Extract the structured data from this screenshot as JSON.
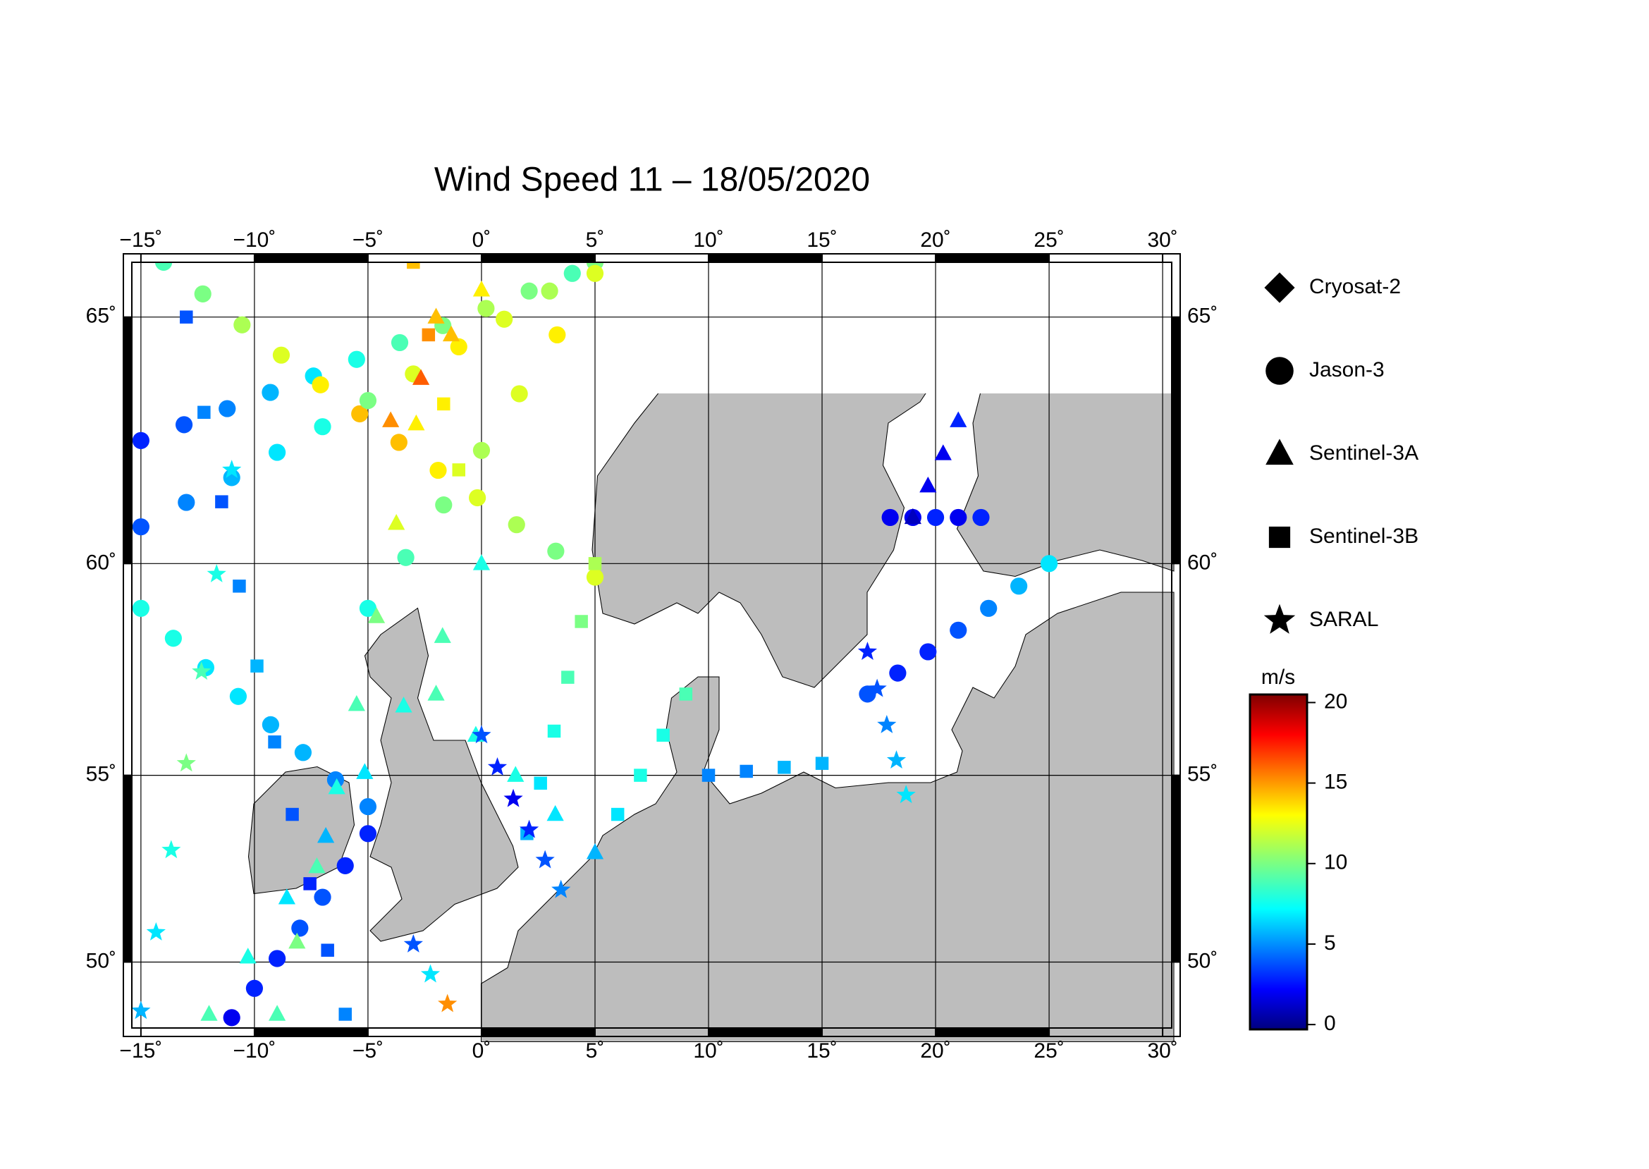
{
  "chart_data": {
    "type": "track-map",
    "title": "Wind Speed 11 – 18/05/2020",
    "projection": "mercator",
    "xlim": [
      -15.4,
      30.4
    ],
    "ylim": [
      48.1,
      66.0
    ],
    "xticks": [
      {
        "value": -15,
        "label": "−15˚"
      },
      {
        "value": -10,
        "label": "−10˚"
      },
      {
        "value": -5,
        "label": "−5˚"
      },
      {
        "value": 0,
        "label": "0˚"
      },
      {
        "value": 5,
        "label": "5˚"
      },
      {
        "value": 10,
        "label": "10˚"
      },
      {
        "value": 15,
        "label": "15˚"
      },
      {
        "value": 20,
        "label": "20˚"
      },
      {
        "value": 25,
        "label": "25˚"
      },
      {
        "value": 30,
        "label": "30˚"
      }
    ],
    "yticks": [
      {
        "value": 50,
        "label": "50˚"
      },
      {
        "value": 55,
        "label": "55˚"
      },
      {
        "value": 60,
        "label": "60˚"
      },
      {
        "value": 65,
        "label": "65˚"
      }
    ],
    "grid": true,
    "colorbar": {
      "label": "m/s",
      "lim": [
        -0.3,
        20.5
      ],
      "ticks": [
        0,
        5,
        10,
        15,
        20
      ],
      "colormap": "jet"
    },
    "series": [
      {
        "name": "Cryosat-2",
        "marker": "diamond",
        "tracks": []
      },
      {
        "name": "Jason-3",
        "marker": "circle",
        "tracks": [
          {
            "start": [
              -15,
              62.6
            ],
            "end": [
              4,
              65.8
            ],
            "values": [
              3,
              4,
              5,
              6,
              7,
              8,
              9,
              10,
              11,
              10,
              9
            ]
          },
          {
            "start": [
              -14,
              66
            ],
            "end": [
              5,
              59.7
            ],
            "values": [
              9,
              10,
              11,
              12,
              13,
              14,
              14,
              13,
              12,
              11,
              10,
              12
            ]
          },
          {
            "start": [
              -15,
              60.8
            ],
            "end": [
              5,
              66
            ],
            "values": [
              4,
              5,
              6,
              7,
              8,
              10,
              12,
              13,
              12,
              11,
              10
            ]
          },
          {
            "start": [
              -15,
              59
            ],
            "end": [
              -5,
              54.2
            ],
            "values": [
              8,
              8,
              7,
              7,
              6,
              6,
              5,
              5
            ]
          },
          {
            "start": [
              -11,
              48.4
            ],
            "end": [
              -5,
              53.5
            ],
            "values": [
              2,
              3,
              3,
              4,
              4,
              3,
              3
            ]
          },
          {
            "start": [
              -5,
              59
            ],
            "end": [
              5,
              65.8
            ],
            "values": [
              8,
              9,
              10,
              11,
              12,
              13,
              12
            ]
          },
          {
            "start": [
              17,
              57
            ],
            "end": [
              25,
              60
            ],
            "values": [
              4,
              3,
              3,
              4,
              5,
              6,
              7
            ]
          },
          {
            "start": [
              18,
              61
            ],
            "end": [
              22,
              61
            ],
            "values": [
              2,
              2,
              3,
              2,
              3
            ]
          }
        ]
      },
      {
        "name": "Sentinel-3A",
        "marker": "triangle",
        "tracks": [
          {
            "start": [
              -9,
              48.5
            ],
            "end": [
              -2,
              65
            ],
            "values": [
              9,
              10,
              9,
              8,
              9,
              10,
              12,
              13,
              14
            ]
          },
          {
            "start": [
              -4,
              63
            ],
            "end": [
              0,
              65.5
            ],
            "values": [
              15,
              16,
              14,
              13
            ]
          },
          {
            "start": [
              0,
              60
            ],
            "end": [
              -12,
              48.5
            ],
            "values": [
              8,
              9,
              8,
              7,
              6,
              7,
              8,
              9
            ]
          },
          {
            "start": [
              19,
              61
            ],
            "end": [
              21,
              63
            ],
            "values": [
              1,
              2,
              2,
              3
            ]
          },
          {
            "start": [
              -2,
              57
            ],
            "end": [
              5,
              53
            ],
            "values": [
              9,
              8,
              8,
              7,
              6
            ]
          }
        ]
      },
      {
        "name": "Sentinel-3B",
        "marker": "square",
        "tracks": [
          {
            "start": [
              -13,
              65
            ],
            "end": [
              -6,
              48.5
            ],
            "values": [
              4,
              5,
              4,
              5,
              6,
              5,
              4,
              3,
              4,
              5
            ]
          },
          {
            "start": [
              2,
              53.5
            ],
            "end": [
              5,
              60
            ],
            "values": [
              6,
              7,
              8,
              9,
              10,
              11
            ]
          },
          {
            "start": [
              6,
              54
            ],
            "end": [
              9,
              57
            ],
            "values": [
              7,
              8,
              8,
              9
            ]
          },
          {
            "start": [
              10,
              55
            ],
            "end": [
              15,
              55.3
            ],
            "values": [
              5,
              5,
              6,
              6
            ]
          },
          {
            "start": [
              -3,
              66
            ],
            "end": [
              -1,
              62
            ],
            "values": [
              14,
              15,
              13,
              12
            ]
          }
        ]
      },
      {
        "name": "SARAL",
        "marker": "star",
        "tracks": [
          {
            "start": [
              -11,
              62
            ],
            "end": [
              -15,
              48.6
            ],
            "values": [
              7,
              8,
              9,
              10,
              8,
              7,
              6
            ]
          },
          {
            "start": [
              0,
              56
            ],
            "end": [
              3.5,
              52
            ],
            "values": [
              4,
              3,
              2,
              3,
              4,
              5
            ]
          },
          {
            "start": [
              17,
              58
            ],
            "end": [
              18.7,
              54.5
            ],
            "values": [
              3,
              4,
              5,
              6,
              7
            ]
          },
          {
            "start": [
              -3,
              50.5
            ],
            "end": [
              -1.5,
              48.8
            ],
            "values": [
              4,
              7,
              15
            ]
          }
        ]
      }
    ]
  }
}
